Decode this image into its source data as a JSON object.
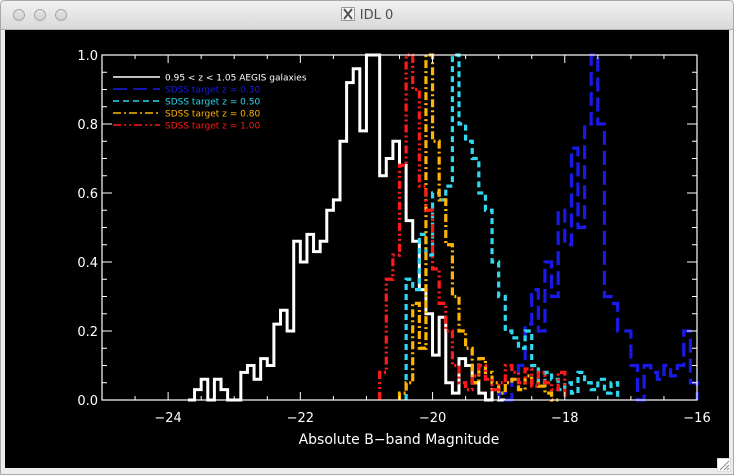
{
  "window": {
    "title": "IDL 0",
    "buttons": {
      "close": "close",
      "minimize": "minimize",
      "zoom": "zoom"
    }
  },
  "chart_data": {
    "type": "step-histogram",
    "title": "",
    "xlabel": "Absolute B−band Magnitude",
    "ylabel": "",
    "xlim": [
      -25,
      -16
    ],
    "ylim": [
      0,
      1.0
    ],
    "x_ticks": [
      -24,
      -22,
      -20,
      -18,
      -16
    ],
    "x_tick_labels": [
      "−24",
      "−22",
      "−20",
      "−18",
      "−16"
    ],
    "y_ticks": [
      0.0,
      0.2,
      0.4,
      0.6,
      0.8,
      1.0
    ],
    "y_tick_labels": [
      "0.0",
      "0.2",
      "0.4",
      "0.6",
      "0.8",
      "1.0"
    ],
    "legend_position": "top-left",
    "series": [
      {
        "name": "0.95 < z < 1.05 AEGIS galaxies",
        "color": "#ffffff",
        "dash": "solid",
        "x": [
          -23.7,
          -23.6,
          -23.5,
          -23.4,
          -23.3,
          -23.2,
          -23.1,
          -23.0,
          -22.9,
          -22.8,
          -22.7,
          -22.6,
          -22.5,
          -22.4,
          -22.3,
          -22.2,
          -22.1,
          -22.0,
          -21.9,
          -21.8,
          -21.7,
          -21.6,
          -21.5,
          -21.4,
          -21.3,
          -21.2,
          -21.1,
          -21.0,
          -20.9,
          -20.8,
          -20.7,
          -20.6,
          -20.5,
          -20.4,
          -20.3,
          -20.2,
          -20.1,
          -20.0,
          -19.9,
          -19.8,
          -19.7,
          -19.6,
          -19.5,
          -19.4,
          -19.3,
          -19.2,
          -19.1,
          -19.0
        ],
        "y": [
          0.0,
          0.03,
          0.06,
          0.0,
          0.06,
          0.03,
          0.0,
          0.0,
          0.08,
          0.1,
          0.06,
          0.12,
          0.1,
          0.22,
          0.26,
          0.2,
          0.46,
          0.4,
          0.48,
          0.43,
          0.46,
          0.55,
          0.58,
          0.75,
          0.92,
          0.96,
          0.78,
          1.0,
          1.0,
          0.65,
          0.7,
          0.75,
          0.68,
          0.52,
          0.46,
          0.32,
          0.25,
          0.13,
          0.24,
          0.05,
          0.02,
          0.12,
          0.1,
          0.05,
          0.02,
          0.0,
          0.03,
          0.0
        ]
      },
      {
        "name": "SDSS target z = 0.30",
        "color": "#1a1ae8",
        "dash": "long-dash",
        "x": [
          -19.0,
          -18.9,
          -18.8,
          -18.7,
          -18.6,
          -18.5,
          -18.4,
          -18.3,
          -18.2,
          -18.1,
          -18.0,
          -17.9,
          -17.8,
          -17.7,
          -17.6,
          -17.5,
          -17.4,
          -17.3,
          -17.2,
          -17.1,
          -17.0,
          -16.9,
          -16.8,
          -16.7,
          -16.6,
          -16.5,
          -16.4,
          -16.3,
          -16.2,
          -16.1
        ],
        "y": [
          0.02,
          0.0,
          0.06,
          0.1,
          0.22,
          0.32,
          0.2,
          0.4,
          0.3,
          0.55,
          0.45,
          0.73,
          0.5,
          0.8,
          1.0,
          0.8,
          0.3,
          0.28,
          0.2,
          0.2,
          0.1,
          0.0,
          0.1,
          0.08,
          0.06,
          0.1,
          0.07,
          0.1,
          0.2,
          0.05
        ]
      },
      {
        "name": "SDSS target z = 0.50",
        "color": "#2fd8f0",
        "dash": "dash",
        "x": [
          -20.4,
          -20.3,
          -20.2,
          -20.1,
          -20.0,
          -19.9,
          -19.8,
          -19.7,
          -19.6,
          -19.5,
          -19.4,
          -19.3,
          -19.2,
          -19.1,
          -19.0,
          -18.9,
          -18.8,
          -18.7,
          -18.6,
          -18.5,
          -18.4,
          -18.3,
          -18.2,
          -18.1,
          -18.0,
          -17.9,
          -17.8,
          -17.7,
          -17.6,
          -17.5,
          -17.4,
          -17.3
        ],
        "y": [
          0.35,
          0.32,
          0.48,
          0.42,
          0.6,
          0.58,
          0.62,
          1.0,
          0.8,
          0.75,
          0.7,
          0.6,
          0.55,
          0.4,
          0.3,
          0.2,
          0.18,
          0.15,
          0.2,
          0.1,
          0.05,
          0.08,
          0.06,
          0.03,
          0.05,
          0.02,
          0.08,
          0.05,
          0.03,
          0.06,
          0.02,
          0.05
        ]
      },
      {
        "name": "SDSS target z = 0.80",
        "color": "#ffb400",
        "dash": "dash-dot",
        "x": [
          -20.5,
          -20.4,
          -20.3,
          -20.2,
          -20.1,
          -20.0,
          -19.9,
          -19.8,
          -19.7,
          -19.6,
          -19.5,
          -19.4,
          -19.3,
          -19.2,
          -19.1,
          -19.0,
          -18.9,
          -18.8,
          -18.7,
          -18.6,
          -18.5,
          -18.4,
          -18.3,
          -18.2
        ],
        "y": [
          0.02,
          0.05,
          0.28,
          0.15,
          1.0,
          0.75,
          0.58,
          0.45,
          0.3,
          0.2,
          0.15,
          0.05,
          0.12,
          0.08,
          0.05,
          0.02,
          0.05,
          0.06,
          0.03,
          0.07,
          0.05,
          0.04,
          0.02,
          0.0
        ]
      },
      {
        "name": "SDSS target z = 1.00",
        "color": "#ff1a1a",
        "dash": "dash-dot-dot",
        "x": [
          -20.8,
          -20.7,
          -20.6,
          -20.5,
          -20.4,
          -20.3,
          -20.2,
          -20.1,
          -20.0,
          -19.9,
          -19.8,
          -19.7,
          -19.6,
          -19.5,
          -19.4,
          -19.3,
          -19.2,
          -19.1,
          -19.0,
          -18.9,
          -18.8,
          -18.7,
          -18.6,
          -18.5,
          -18.4,
          -18.3,
          -18.2,
          -18.1
        ],
        "y": [
          0.08,
          0.35,
          0.42,
          0.68,
          1.0,
          0.9,
          0.62,
          0.55,
          0.38,
          0.28,
          0.2,
          0.1,
          0.05,
          0.03,
          0.07,
          0.1,
          0.06,
          0.03,
          0.05,
          0.1,
          0.08,
          0.05,
          0.09,
          0.04,
          0.08,
          0.05,
          0.03,
          0.08
        ]
      }
    ]
  }
}
